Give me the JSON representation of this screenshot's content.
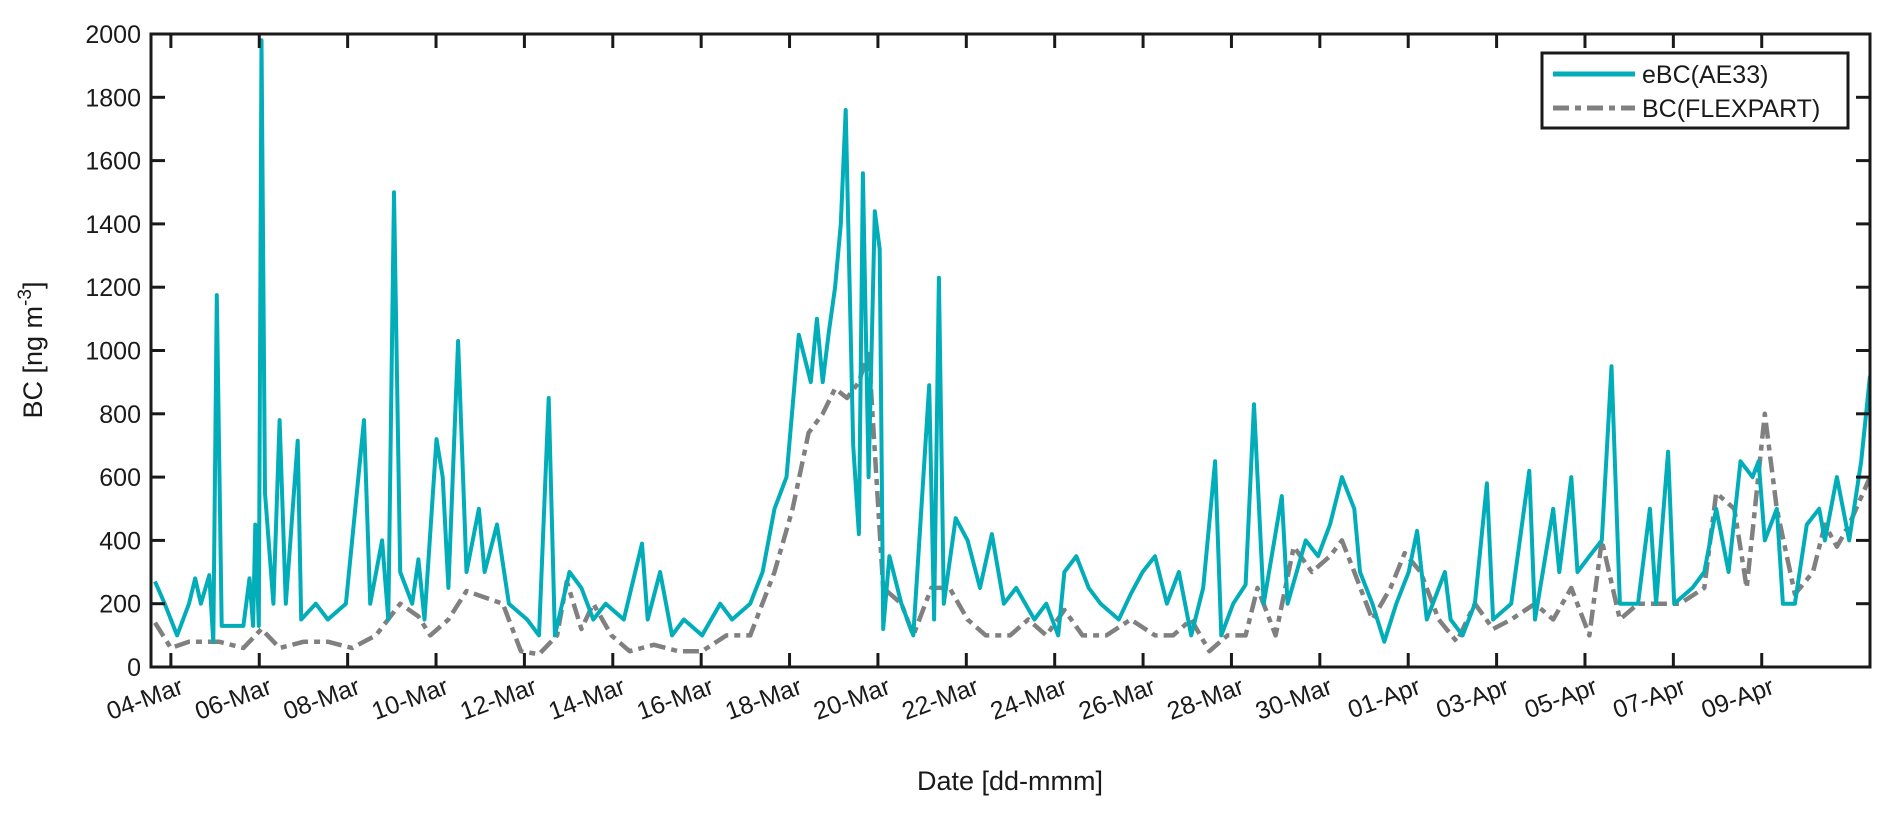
{
  "chart_data": {
    "type": "line",
    "title": "",
    "xlabel": "Date [dd-mmm]",
    "ylabel": {
      "main": "BC [ng m",
      "sup": "-3",
      "end": "]"
    },
    "ylim": [
      0,
      2000
    ],
    "yticks": [
      0,
      200,
      400,
      600,
      800,
      1000,
      1200,
      1400,
      1600,
      1800,
      2000
    ],
    "xlim_days_since_04Mar": [
      -0.45,
      38.45
    ],
    "xtick_days": [
      0,
      2,
      4,
      6,
      8,
      10,
      12,
      14,
      16,
      18,
      20,
      22,
      24,
      26,
      28,
      30,
      32,
      34,
      36
    ],
    "xtick_labels": [
      "04-Mar",
      "06-Mar",
      "08-Mar",
      "10-Mar",
      "12-Mar",
      "14-Mar",
      "16-Mar",
      "18-Mar",
      "20-Mar",
      "22-Mar",
      "24-Mar",
      "26-Mar",
      "28-Mar",
      "30-Mar",
      "01-Apr",
      "03-Apr",
      "05-Apr",
      "07-Apr",
      "09-Apr"
    ],
    "grid": false,
    "legend_position": "top-right",
    "series": [
      {
        "name": "eBC(AE33)",
        "color": "#00adb8",
        "style": "solid",
        "t": [
          -0.36,
          -0.14,
          0.14,
          0.41,
          0.55,
          0.68,
          0.87,
          0.96,
          1.04,
          1.15,
          1.37,
          1.64,
          1.78,
          1.86,
          1.91,
          1.99,
          2.05,
          2.13,
          2.32,
          2.46,
          2.6,
          2.87,
          2.95,
          3.28,
          3.55,
          3.96,
          4.37,
          4.51,
          4.78,
          4.92,
          5.05,
          5.19,
          5.46,
          5.6,
          5.74,
          6.01,
          6.15,
          6.28,
          6.5,
          6.69,
          6.97,
          7.1,
          7.38,
          7.65,
          8.06,
          8.33,
          8.55,
          8.69,
          9.02,
          9.29,
          9.56,
          9.84,
          10.25,
          10.66,
          10.79,
          11.07,
          11.34,
          11.61,
          12.02,
          12.43,
          12.7,
          13.11,
          13.39,
          13.66,
          13.93,
          14.21,
          14.48,
          14.62,
          14.75,
          14.89,
          15.03,
          15.16,
          15.27,
          15.44,
          15.57,
          15.66,
          15.79,
          15.93,
          16.04,
          16.12,
          16.26,
          16.53,
          16.8,
          17.16,
          17.27,
          17.38,
          17.49,
          17.76,
          18.03,
          18.31,
          18.58,
          18.85,
          19.13,
          19.54,
          19.81,
          20.08,
          20.22,
          20.49,
          20.77,
          21.04,
          21.45,
          21.72,
          21.99,
          22.27,
          22.54,
          22.81,
          23.09,
          23.36,
          23.63,
          23.77,
          24.04,
          24.32,
          24.51,
          24.73,
          25.14,
          25.27,
          25.68,
          25.96,
          26.23,
          26.5,
          26.78,
          26.91,
          27.19,
          27.46,
          27.73,
          28.01,
          28.2,
          28.42,
          28.83,
          28.96,
          29.23,
          29.51,
          29.78,
          29.92,
          30.33,
          30.74,
          30.87,
          31.28,
          31.42,
          31.69,
          31.83,
          32.1,
          32.38,
          32.6,
          32.79,
          33.2,
          33.47,
          33.61,
          33.88,
          34.02,
          34.43,
          34.7,
          34.97,
          35.25,
          35.52,
          35.79,
          35.93,
          36.07,
          36.34,
          36.48,
          36.75,
          37.02,
          37.3,
          37.43,
          37.7,
          37.98,
          38.25,
          38.45
        ],
        "v": [
          270,
          200,
          100,
          200,
          280,
          200,
          290,
          80,
          1175,
          130,
          130,
          130,
          280,
          130,
          450,
          130,
          1980,
          550,
          200,
          780,
          200,
          715,
          150,
          200,
          150,
          200,
          780,
          200,
          400,
          150,
          1500,
          300,
          200,
          340,
          150,
          720,
          600,
          250,
          1030,
          300,
          500,
          300,
          450,
          200,
          150,
          100,
          850,
          100,
          300,
          250,
          150,
          200,
          150,
          390,
          150,
          300,
          100,
          150,
          100,
          200,
          150,
          200,
          300,
          500,
          600,
          1050,
          900,
          1100,
          900,
          1060,
          1200,
          1400,
          1760,
          700,
          420,
          1560,
          600,
          1440,
          1320,
          120,
          350,
          200,
          100,
          890,
          150,
          1230,
          200,
          470,
          400,
          250,
          420,
          200,
          250,
          150,
          200,
          100,
          300,
          350,
          250,
          200,
          150,
          230,
          300,
          350,
          200,
          300,
          100,
          250,
          650,
          100,
          200,
          260,
          830,
          200,
          540,
          200,
          400,
          350,
          450,
          600,
          500,
          300,
          200,
          80,
          200,
          300,
          430,
          150,
          300,
          150,
          100,
          200,
          580,
          150,
          200,
          620,
          150,
          500,
          300,
          600,
          300,
          350,
          400,
          950,
          200,
          200,
          500,
          200,
          680,
          200,
          250,
          300,
          500,
          300,
          650,
          600,
          650,
          400,
          500,
          200,
          200,
          450,
          500,
          400,
          600,
          400,
          650,
          920
        ]
      },
      {
        "name": "BC(FLEXPART)",
        "color": "#808080",
        "style": "dashdot",
        "t": [
          -0.36,
          0.0,
          0.41,
          1.09,
          1.64,
          2.05,
          2.46,
          3.01,
          3.55,
          4.1,
          4.64,
          5.19,
          5.6,
          5.87,
          6.28,
          6.69,
          7.1,
          7.51,
          7.92,
          8.33,
          8.74,
          8.96,
          9.29,
          9.56,
          9.97,
          10.38,
          10.93,
          11.48,
          12.02,
          12.57,
          13.11,
          13.66,
          14.07,
          14.43,
          14.75,
          15.03,
          15.3,
          15.57,
          15.79,
          16.12,
          16.53,
          16.8,
          17.21,
          17.62,
          18.03,
          18.44,
          18.99,
          19.4,
          19.81,
          20.22,
          20.63,
          21.17,
          21.72,
          22.27,
          22.68,
          23.09,
          23.5,
          23.91,
          24.32,
          24.59,
          25.0,
          25.41,
          25.82,
          26.23,
          26.5,
          26.78,
          27.19,
          27.6,
          27.92,
          28.28,
          28.69,
          29.1,
          29.51,
          29.92,
          30.33,
          30.87,
          31.28,
          31.69,
          32.1,
          32.38,
          32.79,
          33.2,
          33.61,
          34.15,
          34.7,
          34.97,
          35.38,
          35.66,
          36.07,
          36.34,
          36.75,
          37.16,
          37.43,
          37.7,
          37.98,
          38.45
        ],
        "v": [
          140,
          60,
          80,
          80,
          60,
          120,
          60,
          80,
          80,
          60,
          100,
          200,
          160,
          100,
          150,
          240,
          220,
          200,
          50,
          40,
          100,
          270,
          120,
          200,
          100,
          50,
          70,
          50,
          50,
          100,
          100,
          300,
          500,
          740,
          800,
          880,
          850,
          900,
          1000,
          250,
          200,
          100,
          250,
          250,
          150,
          100,
          100,
          150,
          100,
          180,
          100,
          100,
          150,
          100,
          100,
          150,
          50,
          100,
          100,
          250,
          100,
          380,
          300,
          350,
          400,
          300,
          150,
          250,
          360,
          300,
          150,
          80,
          200,
          120,
          150,
          200,
          150,
          250,
          100,
          400,
          150,
          200,
          200,
          200,
          250,
          550,
          500,
          250,
          800,
          500,
          230,
          300,
          450,
          380,
          450,
          600
        ]
      }
    ]
  }
}
